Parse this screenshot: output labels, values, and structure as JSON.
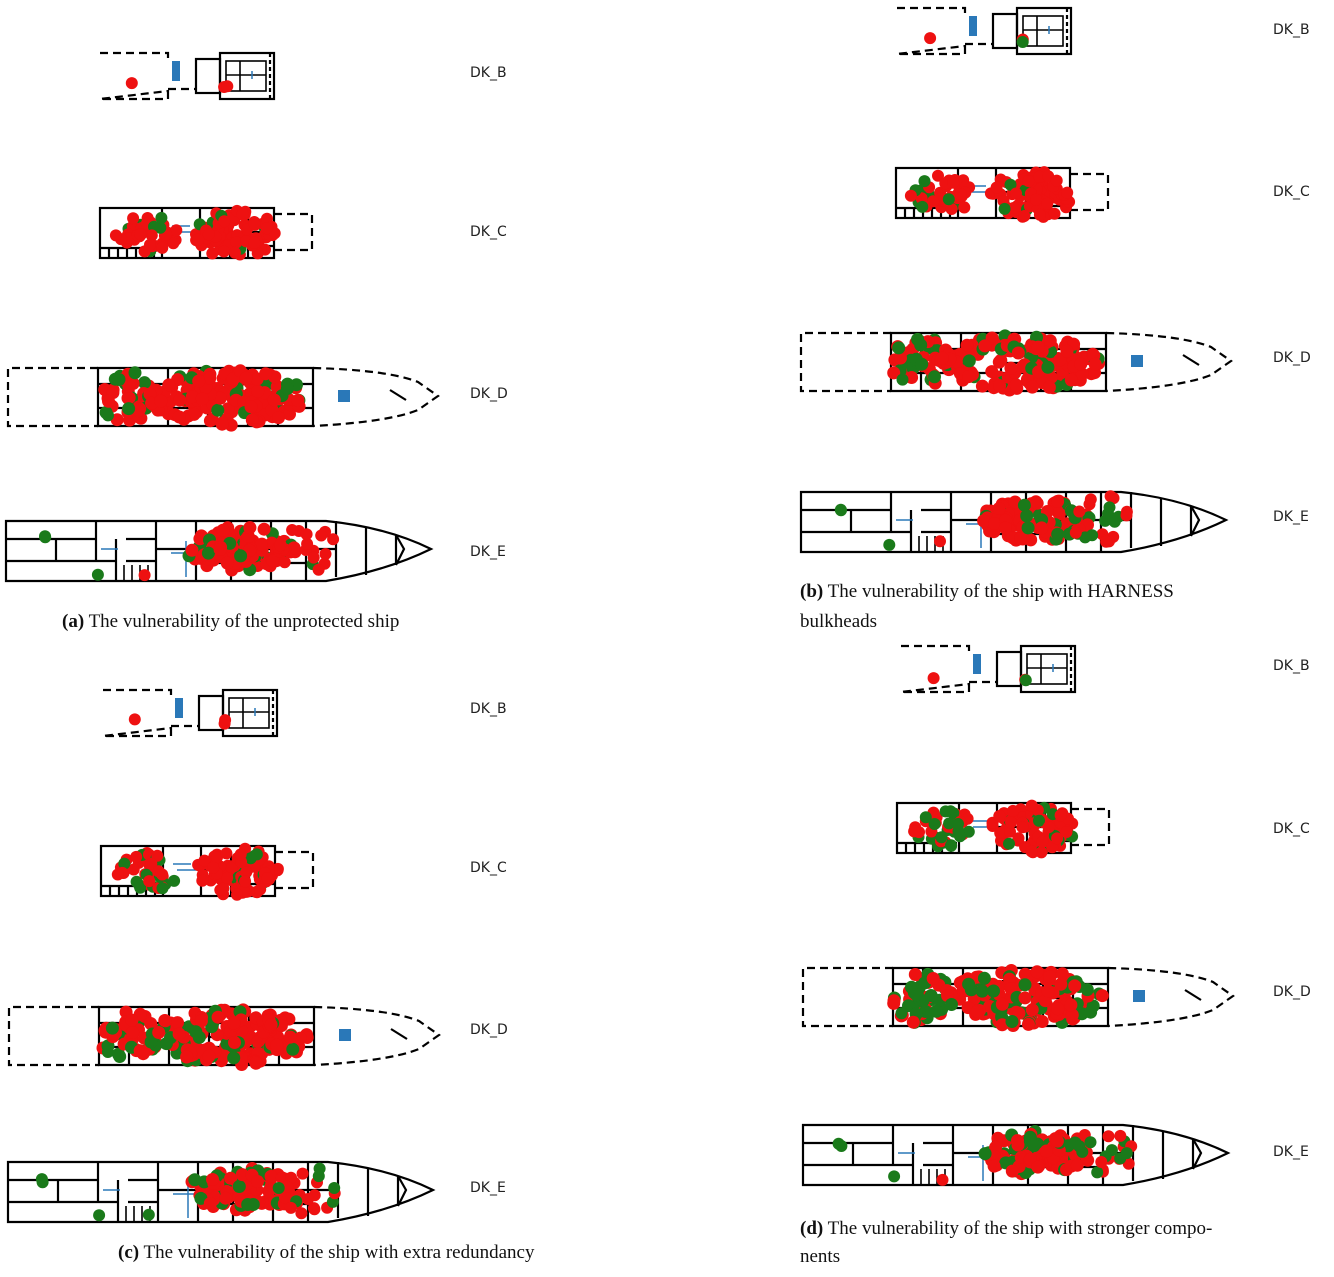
{
  "deck_labels": [
    "DK_B",
    "DK_C",
    "DK_D",
    "DK_E"
  ],
  "captions": {
    "a": {
      "tag": "(a)",
      "line1": "The vulnerability of the unprotected ship",
      "line2": ""
    },
    "b": {
      "tag": "(b)",
      "line1": "The vulnerability of the ship with HARNESS",
      "line2": "bulkheads"
    },
    "c": {
      "tag": "(c)",
      "line1": "The vulnerability of the ship with extra redundancy",
      "line2": ""
    },
    "d": {
      "tag": "(d)",
      "line1": "The vulnerability of the ship with stronger compo-",
      "line2": "nents"
    }
  },
  "colors": {
    "outline": "#000000",
    "failed_component": "#ee1111",
    "surviving_component": "#1a7a1a",
    "equipment": "#2a78b8"
  },
  "legend_semantics": {
    "red_marker": "failed component",
    "green_marker": "surviving component",
    "blue_marker": "equipment / system node"
  },
  "panels": [
    {
      "id": "a",
      "green_fraction": 0.2,
      "red_fraction": 0.8
    },
    {
      "id": "b",
      "green_fraction": 0.3,
      "red_fraction": 0.7
    },
    {
      "id": "c",
      "green_fraction": 0.3,
      "red_fraction": 0.7
    },
    {
      "id": "d",
      "green_fraction": 0.45,
      "red_fraction": 0.55
    }
  ]
}
